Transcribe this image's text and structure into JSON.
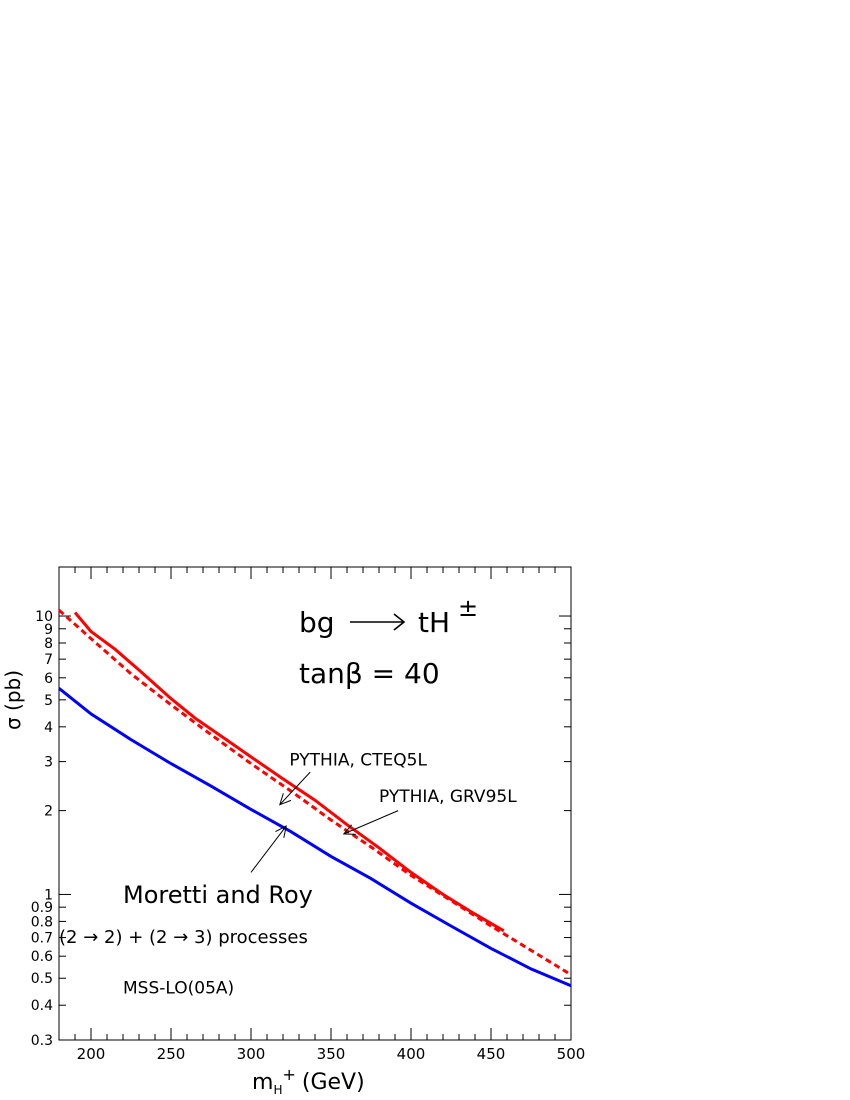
{
  "chart_data": {
    "type": "line",
    "xlabel": "m",
    "xlabel_sub": "H",
    "xlabel_sup": "+",
    "xlabel_unit": "(GeV)",
    "ylabel": "σ (pb)",
    "xlim": [
      180,
      500
    ],
    "ylim": [
      0.3,
      15
    ],
    "y_scale": "log",
    "x_ticks": [
      200,
      250,
      300,
      350,
      400,
      450,
      500
    ],
    "y_ticks": [
      {
        "value": 0.3,
        "label": "0.3"
      },
      {
        "value": 0.4,
        "label": "0.4"
      },
      {
        "value": 0.5,
        "label": "0.5"
      },
      {
        "value": 0.6,
        "label": "0.6"
      },
      {
        "value": 0.7,
        "label": "0.7"
      },
      {
        "value": 0.8,
        "label": "0.8"
      },
      {
        "value": 0.9,
        "label": "0.9"
      },
      {
        "value": 1,
        "label": "1"
      },
      {
        "value": 2,
        "label": "2"
      },
      {
        "value": 3,
        "label": "3"
      },
      {
        "value": 4,
        "label": "4"
      },
      {
        "value": 5,
        "label": "5"
      },
      {
        "value": 6,
        "label": "6"
      },
      {
        "value": 7,
        "label": "7"
      },
      {
        "value": 8,
        "label": "8"
      },
      {
        "value": 9,
        "label": "9"
      },
      {
        "value": 10,
        "label": "10"
      }
    ],
    "process": {
      "lhs": "bg",
      "rhs": "tH",
      "rhs_sup": "±",
      "param": "tanβ = 40"
    },
    "series": [
      {
        "id": "pythia-cteq5l",
        "color": "#ff0000",
        "style": "solid",
        "x": [
          190,
          200,
          215,
          230,
          250,
          265,
          280,
          300,
          320,
          340,
          360,
          380,
          400,
          420,
          440,
          458
        ],
        "y": [
          10.3,
          8.8,
          7.6,
          6.4,
          5.05,
          4.3,
          3.75,
          3.12,
          2.6,
          2.18,
          1.78,
          1.47,
          1.2,
          1.0,
          0.85,
          0.74
        ]
      },
      {
        "id": "pythia-grv95l",
        "color": "#ff0000",
        "style": "dashed",
        "x": [
          180,
          200,
          225,
          250,
          275,
          300,
          325,
          350,
          375,
          400,
          425,
          450,
          475,
          500
        ],
        "y": [
          10.5,
          8.3,
          6.2,
          4.8,
          3.75,
          2.95,
          2.35,
          1.85,
          1.48,
          1.17,
          0.95,
          0.77,
          0.63,
          0.515
        ]
      },
      {
        "id": "moretti-roy",
        "color": "#0000ff",
        "style": "solid",
        "x": [
          180,
          200,
          225,
          250,
          275,
          300,
          325,
          350,
          375,
          400,
          425,
          450,
          475,
          500
        ],
        "y": [
          5.5,
          4.45,
          3.6,
          2.95,
          2.45,
          2.02,
          1.68,
          1.37,
          1.14,
          0.93,
          0.77,
          0.64,
          0.54,
          0.47
        ]
      }
    ],
    "annotations": [
      {
        "id": "annot-cteq",
        "text": "PYTHIA, CTEQ5L",
        "text_x": 324,
        "text_y": 2.9,
        "from_x": 337,
        "from_y": 2.75,
        "to_x": 318,
        "to_y": 2.1
      },
      {
        "id": "annot-grv",
        "text": "PYTHIA, GRV95L",
        "text_x": 380,
        "text_y": 2.15,
        "from_x": 392,
        "from_y": 2.0,
        "to_x": 358,
        "to_y": 1.65
      },
      {
        "id": "annot-mr",
        "text": "Moretti and Roy",
        "text_x": 220,
        "text_y": 0.93,
        "from_x": 300,
        "from_y": 1.2,
        "to_x": 322,
        "to_y": 1.76
      },
      {
        "id": "annot-proc",
        "text": "(2 → 2) + (2 → 3) processes",
        "text_x": 180,
        "text_y": 0.67
      },
      {
        "id": "annot-pdf",
        "text": "MSS-LO(05A)",
        "text_x": 220,
        "text_y": 0.44
      }
    ]
  }
}
